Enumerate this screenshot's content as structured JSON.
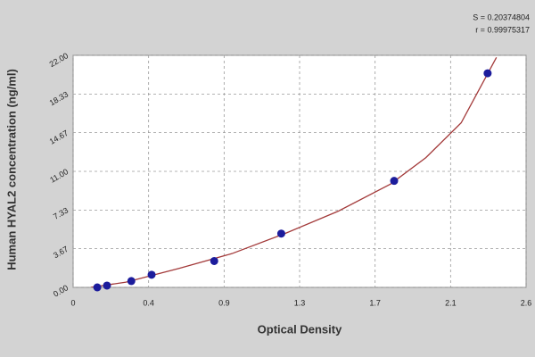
{
  "chart_data": {
    "type": "scatter",
    "x_label": "Optical Density",
    "y_label": "Human HYAL2 concentration (ng/ml)",
    "annotations": [
      "S = 0.20374804",
      "r = 0.99975317"
    ],
    "x": [
      0.137,
      0.192,
      0.33,
      0.445,
      0.8,
      1.18,
      1.82,
      2.35
    ],
    "values": [
      0,
      0.17,
      0.6,
      1.2,
      2.5,
      5.1,
      10.1,
      20.3
    ],
    "color": "#1c1c9c",
    "curve": {
      "x": [
        0.1,
        0.3,
        0.6,
        0.9,
        1.2,
        1.5,
        1.8,
        2.0,
        2.2,
        2.4
      ],
      "values": [
        0,
        0.5,
        1.8,
        3.2,
        5.1,
        7.2,
        9.8,
        12.3,
        15.6,
        21.8
      ],
      "color": "#a33a3a"
    },
    "xlim": [
      0,
      2.568
    ],
    "xticks": [
      0,
      {
        "value": 0.428,
        "label": "0.4"
      },
      {
        "value": 0.856,
        "label": "0.9"
      },
      {
        "value": 1.284,
        "label": "1.3"
      },
      {
        "value": 1.712,
        "label": "1.7"
      },
      {
        "value": 2.14,
        "label": "2.1"
      },
      {
        "value": 2.568,
        "label": "2.6"
      }
    ],
    "ylim": [
      0,
      22
    ],
    "yticks": [
      {
        "value": 0,
        "label": "0.00"
      },
      {
        "value": 3.67,
        "label": "3.67"
      },
      {
        "value": 7.33,
        "label": "7.33"
      },
      {
        "value": 11,
        "label": "11.00"
      },
      {
        "value": 14.67,
        "label": "14.67"
      },
      {
        "value": 18.33,
        "label": "18.33"
      },
      {
        "value": 22,
        "label": "22.00"
      }
    ],
    "grid": true
  }
}
